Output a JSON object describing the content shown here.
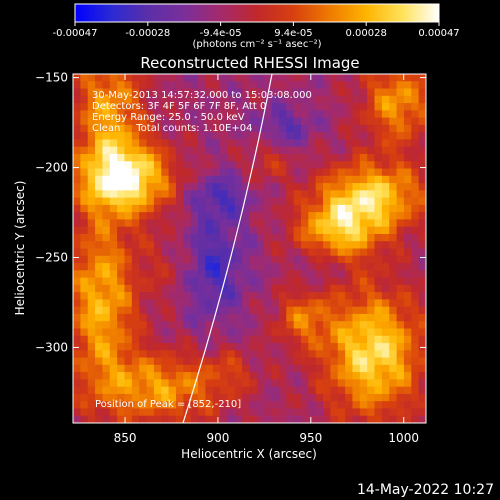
{
  "colorbar": {
    "colors": [
      "#0000ff",
      "#2a2ad4",
      "#5b2fa8",
      "#7a2f9a",
      "#a42a6c",
      "#c0282c",
      "#d8400f",
      "#ef7a00",
      "#ffb400",
      "#ffe25a",
      "#ffffff"
    ],
    "ticks": [
      "-0.00047",
      "-0.00028",
      "-9.4e-05",
      "9.4e-05",
      "0.00028",
      "0.00047"
    ],
    "units_label": "(photons cm⁻² s⁻¹ asec⁻²)"
  },
  "chart_data": {
    "type": "heatmap",
    "title": "Reconstructed RHESSI Image",
    "xlabel": "Heliocentric X (arcsec)",
    "ylabel": "Heliocentric Y (arcsec)",
    "xlim": [
      822,
      1012
    ],
    "ylim": [
      -342,
      -148
    ],
    "xticks": [
      850,
      900,
      950,
      1000
    ],
    "yticks": [
      -150,
      -200,
      -250,
      -300
    ],
    "colorscale_range": [
      -0.00047,
      0.00047
    ],
    "annotations": [
      "30-May-2013 14:57:32.000 to 15:03:08.000",
      "Detectors: 3F 4F 5F 6F 7F 8F, Att 0",
      "Energy Range: 25.0 - 50.0 keV",
      "Clean     Total counts: 1.10E+04"
    ],
    "peak_label": "Position of Peak = [852,-210]",
    "peak": [
      852,
      -210
    ]
  },
  "footer": {
    "timestamp": "14-May-2022 10:27"
  }
}
